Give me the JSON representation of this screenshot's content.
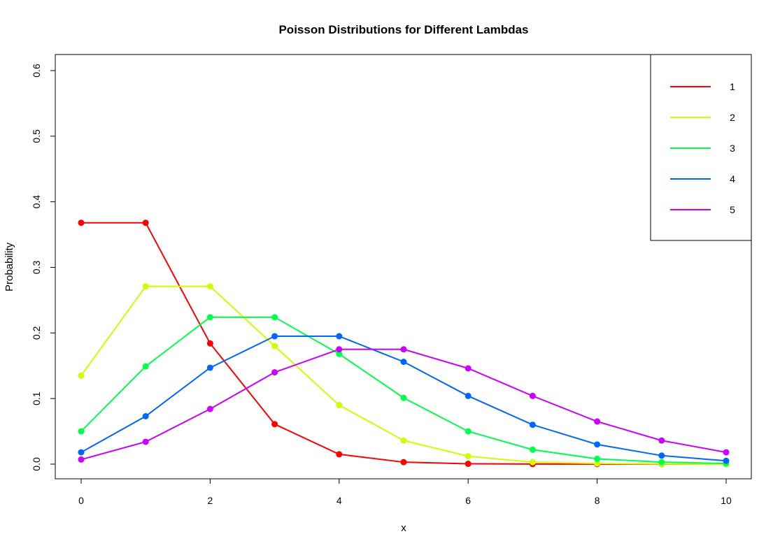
{
  "chart_data": {
    "type": "line",
    "title": "Poisson Distributions for Different Lambdas",
    "xlabel": "x",
    "ylabel": "Probability",
    "xlim": [
      0,
      10
    ],
    "ylim": [
      0,
      0.6
    ],
    "x_ticks": [
      "0",
      "2",
      "4",
      "6",
      "8",
      "10"
    ],
    "y_ticks": [
      "0.0",
      "0.1",
      "0.2",
      "0.3",
      "0.4",
      "0.5",
      "0.6"
    ],
    "grid": false,
    "legend_position": "top-right",
    "x": [
      0,
      1,
      2,
      3,
      4,
      5,
      6,
      7,
      8,
      9,
      10
    ],
    "series": [
      {
        "name": "1",
        "color": "#ff0000",
        "values": [
          0.368,
          0.368,
          0.184,
          0.061,
          0.015,
          0.003,
          0.0005,
          0.0001,
          0.0,
          0.0,
          0.0
        ]
      },
      {
        "name": "2",
        "color": "#ccff00",
        "values": [
          0.135,
          0.271,
          0.271,
          0.18,
          0.09,
          0.036,
          0.012,
          0.003,
          0.001,
          0.0002,
          0.0
        ]
      },
      {
        "name": "3",
        "color": "#00ff4d",
        "values": [
          0.05,
          0.149,
          0.224,
          0.224,
          0.168,
          0.101,
          0.05,
          0.022,
          0.008,
          0.003,
          0.001
        ]
      },
      {
        "name": "4",
        "color": "#0066ff",
        "values": [
          0.018,
          0.073,
          0.147,
          0.195,
          0.195,
          0.156,
          0.104,
          0.06,
          0.03,
          0.013,
          0.005
        ]
      },
      {
        "name": "5",
        "color": "#cc00ff",
        "values": [
          0.007,
          0.034,
          0.084,
          0.14,
          0.175,
          0.175,
          0.146,
          0.104,
          0.065,
          0.036,
          0.018
        ]
      }
    ]
  }
}
